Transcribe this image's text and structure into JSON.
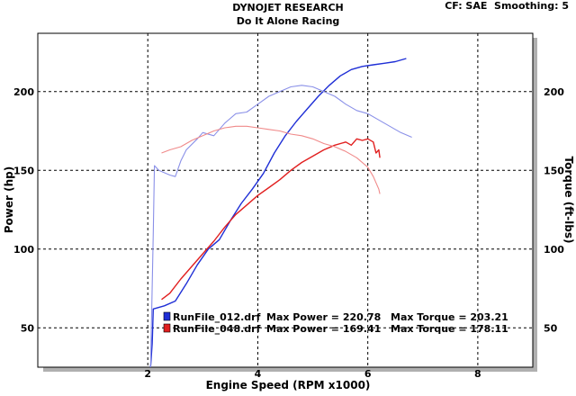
{
  "header": {
    "title": "DYNOJET RESEARCH",
    "subtitle": "Do It Alone Racing",
    "settings": "CF: SAE  Smoothing: 5"
  },
  "chart_data": {
    "type": "line",
    "xlabel": "Engine Speed (RPM x1000)",
    "ylabel_left": "Power (hp)",
    "ylabel_right": "Torque (ft-lbs)",
    "xlim": [
      0.0,
      9.0
    ],
    "ylim": [
      25,
      237
    ],
    "x_ticks": [
      2,
      4,
      6,
      8
    ],
    "y_ticks_left": [
      50,
      100,
      150,
      200
    ],
    "y_ticks_right": [
      50,
      100,
      150,
      200
    ],
    "grid": true,
    "colors": {
      "run1": "#1f2fd6",
      "run2": "#e11f1f",
      "run1_torque": "#8a90e8",
      "run2_torque": "#f08a8a"
    },
    "series": [
      {
        "name": "RunFile_012.drf",
        "measure": "power",
        "points": [
          [
            2.05,
            25
          ],
          [
            2.08,
            40
          ],
          [
            2.1,
            62
          ],
          [
            2.3,
            64
          ],
          [
            2.5,
            67
          ],
          [
            2.7,
            78
          ],
          [
            2.9,
            90
          ],
          [
            3.1,
            100
          ],
          [
            3.3,
            106
          ],
          [
            3.5,
            118
          ],
          [
            3.7,
            129
          ],
          [
            3.9,
            138
          ],
          [
            4.1,
            148
          ],
          [
            4.3,
            161
          ],
          [
            4.5,
            172
          ],
          [
            4.7,
            181
          ],
          [
            4.9,
            189
          ],
          [
            5.1,
            197
          ],
          [
            5.3,
            204
          ],
          [
            5.5,
            210
          ],
          [
            5.7,
            214
          ],
          [
            5.9,
            216
          ],
          [
            6.1,
            217
          ],
          [
            6.3,
            218
          ],
          [
            6.5,
            219
          ],
          [
            6.7,
            221
          ]
        ]
      },
      {
        "name": "RunFile_012.drf",
        "measure": "torque",
        "points": [
          [
            2.05,
            25
          ],
          [
            2.1,
            110
          ],
          [
            2.12,
            153
          ],
          [
            2.2,
            150
          ],
          [
            2.4,
            147
          ],
          [
            2.5,
            146
          ],
          [
            2.6,
            156
          ],
          [
            2.7,
            163
          ],
          [
            2.9,
            170
          ],
          [
            3.0,
            174
          ],
          [
            3.2,
            172
          ],
          [
            3.4,
            180
          ],
          [
            3.6,
            186
          ],
          [
            3.8,
            187
          ],
          [
            4.0,
            192
          ],
          [
            4.2,
            197
          ],
          [
            4.4,
            200
          ],
          [
            4.6,
            203
          ],
          [
            4.8,
            204
          ],
          [
            5.0,
            203
          ],
          [
            5.2,
            200
          ],
          [
            5.4,
            197
          ],
          [
            5.6,
            192
          ],
          [
            5.8,
            188
          ],
          [
            6.0,
            186
          ],
          [
            6.2,
            182
          ],
          [
            6.4,
            178
          ],
          [
            6.6,
            174
          ],
          [
            6.8,
            171
          ]
        ]
      },
      {
        "name": "RunFile_048.drf",
        "measure": "power",
        "points": [
          [
            2.25,
            68
          ],
          [
            2.4,
            72
          ],
          [
            2.6,
            81
          ],
          [
            2.8,
            89
          ],
          [
            3.0,
            97
          ],
          [
            3.2,
            105
          ],
          [
            3.4,
            114
          ],
          [
            3.6,
            122
          ],
          [
            3.8,
            128
          ],
          [
            4.0,
            134
          ],
          [
            4.2,
            139
          ],
          [
            4.4,
            144
          ],
          [
            4.6,
            150
          ],
          [
            4.8,
            155
          ],
          [
            5.0,
            159
          ],
          [
            5.2,
            163
          ],
          [
            5.4,
            166
          ],
          [
            5.6,
            168
          ],
          [
            5.7,
            166
          ],
          [
            5.8,
            170
          ],
          [
            5.9,
            169
          ],
          [
            6.0,
            170
          ],
          [
            6.1,
            168
          ],
          [
            6.15,
            161
          ],
          [
            6.2,
            163
          ],
          [
            6.22,
            158
          ]
        ]
      },
      {
        "name": "RunFile_048.drf",
        "measure": "torque",
        "points": [
          [
            2.25,
            161
          ],
          [
            2.4,
            163
          ],
          [
            2.6,
            165
          ],
          [
            2.8,
            169
          ],
          [
            3.0,
            172
          ],
          [
            3.2,
            175
          ],
          [
            3.4,
            177
          ],
          [
            3.6,
            178
          ],
          [
            3.8,
            178
          ],
          [
            4.0,
            177
          ],
          [
            4.2,
            176
          ],
          [
            4.4,
            175
          ],
          [
            4.6,
            173
          ],
          [
            4.8,
            172
          ],
          [
            5.0,
            170
          ],
          [
            5.2,
            167
          ],
          [
            5.4,
            165
          ],
          [
            5.6,
            162
          ],
          [
            5.8,
            158
          ],
          [
            6.0,
            152
          ],
          [
            6.1,
            146
          ],
          [
            6.2,
            138
          ],
          [
            6.22,
            135
          ]
        ]
      }
    ],
    "legend": {
      "placement": "bottom-center",
      "entries": [
        {
          "file": "RunFile_012.drf",
          "power_label": "Max Power = 220.78",
          "torque_label": "Max Torque = 203.21",
          "color": "#1f2fd6"
        },
        {
          "file": "RunFile_048.drf",
          "power_label": "Max Power = 169.41",
          "torque_label": "Max Torque = 178.11",
          "color": "#e11f1f"
        }
      ]
    }
  }
}
